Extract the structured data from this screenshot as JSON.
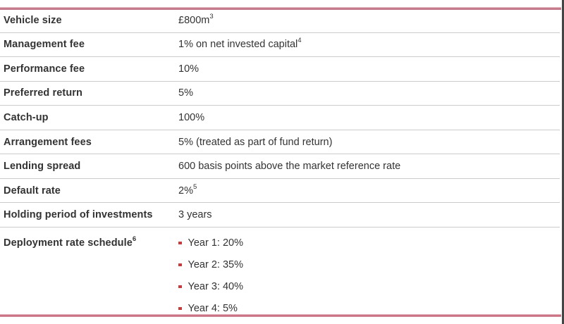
{
  "table": {
    "rows": [
      {
        "label": "Vehicle size",
        "label_sup": "",
        "value": "£800m",
        "value_sup": "3"
      },
      {
        "label": "Management fee",
        "label_sup": "",
        "value": "1% on net invested capital",
        "value_sup": "4"
      },
      {
        "label": "Performance fee",
        "label_sup": "",
        "value": "10%",
        "value_sup": ""
      },
      {
        "label": "Preferred return",
        "label_sup": "",
        "value": "5%",
        "value_sup": ""
      },
      {
        "label": "Catch-up",
        "label_sup": "",
        "value": "100%",
        "value_sup": ""
      },
      {
        "label": "Arrangement fees",
        "label_sup": "",
        "value": "5% (treated as part of fund return)",
        "value_sup": ""
      },
      {
        "label": "Lending spread",
        "label_sup": "",
        "value": "600 basis points above the market reference rate",
        "value_sup": ""
      },
      {
        "label": "Default rate",
        "label_sup": "",
        "value": "2%",
        "value_sup": "5"
      },
      {
        "label": "Holding period of investments",
        "label_sup": "",
        "value": "3 years",
        "value_sup": ""
      },
      {
        "label": "Deployment rate schedule",
        "label_sup": "6",
        "bullets": [
          "Year 1: 20%",
          "Year 2: 35%",
          "Year 3: 40%",
          "Year 4: 5%"
        ]
      }
    ]
  },
  "colors": {
    "rule_rose": "#b25b70",
    "bullet_red": "#c43c3c",
    "separator_gray": "#cbcbcb",
    "text": "#333333",
    "right_edge": "#454545"
  }
}
